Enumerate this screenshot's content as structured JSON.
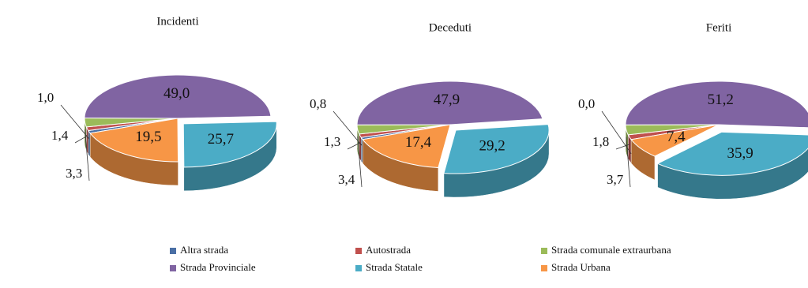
{
  "chart_data": [
    {
      "type": "pie",
      "title": "Incidenti",
      "values": [
        1.0,
        1.4,
        3.3,
        49.0,
        25.7,
        19.5
      ],
      "value_labels": [
        "1,0",
        "1,4",
        "3,3",
        "49,0",
        "25,7",
        "19,5"
      ]
    },
    {
      "type": "pie",
      "title": "Deceduti",
      "values": [
        0.8,
        1.3,
        3.4,
        47.9,
        29.2,
        17.4
      ],
      "value_labels": [
        "0,8",
        "1,3",
        "3,4",
        "47,9",
        "29,2",
        "17,4"
      ]
    },
    {
      "type": "pie",
      "title": "Feriti",
      "values": [
        0.0,
        1.8,
        3.7,
        51.2,
        35.9,
        7.4
      ],
      "value_labels": [
        "0,0",
        "1,8",
        "3,7",
        "51,2",
        "35,9",
        "7,4"
      ]
    }
  ],
  "legend": {
    "categories": [
      "Altra strada",
      "Autostrada",
      "Strada comunale extraurbana",
      "Strada Provinciale",
      "Strada Statale",
      "Strada Urbana"
    ],
    "colors": [
      "#4a6fa5",
      "#c0504d",
      "#9bbb59",
      "#8064a2",
      "#4bacc6",
      "#f79646"
    ]
  }
}
